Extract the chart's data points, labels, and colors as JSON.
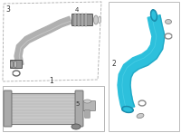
{
  "tube_color": "#2dc0dc",
  "tube_color_dark": "#1a9ab8",
  "tube_color_light": "#5dd8ee",
  "gray_dark": "#888888",
  "gray_mid": "#aaaaaa",
  "gray_light": "#cccccc",
  "gray_very_dark": "#666666",
  "text_color": "#333333",
  "bg_white": "#ffffff",
  "border_color": "#bbbbbb",
  "label1": "1",
  "label2": "2",
  "label3": "3",
  "label4": "4",
  "label5": "5",
  "label_fontsize": 5.5
}
